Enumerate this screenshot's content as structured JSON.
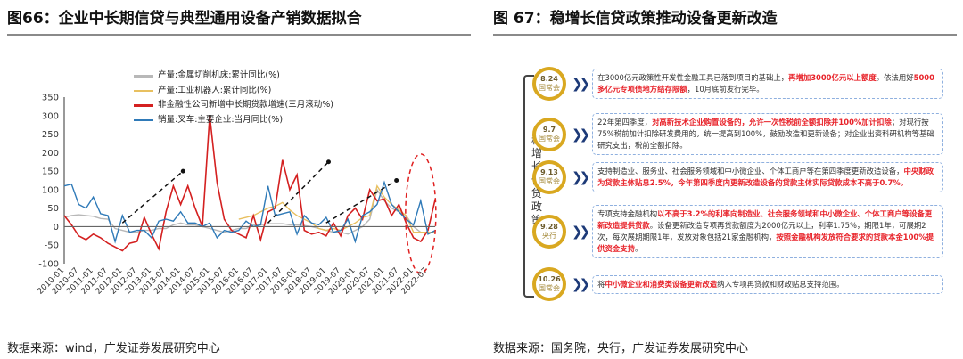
{
  "left": {
    "title": "图66：企业中长期信贷与典型通用设备产销数据拟合",
    "source": "数据来源：wind，广发证券发展研究中心"
  },
  "right": {
    "title": "图 67：稳增长信贷政策推动设备更新改造",
    "source": "数据来源：国务院，央行，广发证券发展研究中心",
    "side_label": "稳增长信贷政策",
    "items": [
      {
        "date": "8.24",
        "org": "国常会",
        "segments": [
          {
            "t": "在3000亿元政策性开发性金融工具已落到项目的基础上，",
            "red": false
          },
          {
            "t": "再增加3000亿元以上额度",
            "red": true
          },
          {
            "t": "。依法用好",
            "red": false
          },
          {
            "t": "5000多亿元专项债地方结存限额",
            "red": true
          },
          {
            "t": "，10月底前发行完毕。",
            "red": false
          }
        ]
      },
      {
        "date": "9.7",
        "org": "国常会",
        "segments": [
          {
            "t": "22年第四季度，",
            "red": false
          },
          {
            "t": "对高新技术企业购置设备的，允许一次性税前全额扣除并100%加计扣除",
            "red": true
          },
          {
            "t": "；对现行按75%税前加计扣除研发费用的，统一提高到100%，鼓励改造和更新设备；对企业出资科研机构等基础研究支出，税前全额扣除。",
            "red": false
          }
        ]
      },
      {
        "date": "9.13",
        "org": "国常会",
        "segments": [
          {
            "t": "支持制造业、服务业、社会服务领域和中小微企业、个体工商户等在第四季度更新改造设备，",
            "red": false
          },
          {
            "t": "中央财政为贷款主体贴息2.5%，今年第四季度内更新改造设备的贷款主体实际贷款成本不高于0.7%。",
            "red": true
          }
        ]
      },
      {
        "date": "9.28",
        "org": "央行",
        "segments": [
          {
            "t": "专项支持金融机构",
            "red": false
          },
          {
            "t": "以不高于3.2%的利率向制造业、社会服务领域和中小微企业、个体工商户等设备更新改造提供贷款",
            "red": true
          },
          {
            "t": "。设备更新改造专项再贷款额度为2000亿元以上，利率1.75%，期限1年，可展期2次，每次展期期限1年，发放对象包括21家金融机构，",
            "red": false
          },
          {
            "t": "按照金融机构发放符合要求的贷款本金100%提供资金支持",
            "red": true
          },
          {
            "t": "。",
            "red": false
          }
        ]
      },
      {
        "date": "10.26",
        "org": "国常会",
        "segments": [
          {
            "t": "将",
            "red": false
          },
          {
            "t": "中小微企业和消费类设备更新改造",
            "red": true
          },
          {
            "t": "纳入专项再贷款和财政贴息支持范围。",
            "red": false
          }
        ]
      }
    ]
  },
  "chart_data": {
    "type": "line",
    "title": "企业中长期信贷与典型通用设备产销数据拟合",
    "ylim": [
      -100,
      350
    ],
    "yticks": [
      350,
      300,
      250,
      200,
      150,
      100,
      50,
      0,
      -50,
      -100
    ],
    "x_start": "2010-01",
    "x_step_months": 3,
    "xticks": [
      "2010-01",
      "2010-07",
      "2011-01",
      "2011-07",
      "2012-01",
      "2012-07",
      "2013-01",
      "2013-07",
      "2014-01",
      "2014-07",
      "2015-01",
      "2015-07",
      "2016-01",
      "2016-07",
      "2017-01",
      "2017-07",
      "2018-01",
      "2018-07",
      "2019-01",
      "2019-07",
      "2020-01",
      "2020-07",
      "2021-01",
      "2021-07",
      "2022-01",
      "2022-07"
    ],
    "series": [
      {
        "name": "产量:金属切削机床:累计同比(%)",
        "color": "#b8b8b8",
        "values": [
          25,
          30,
          32,
          30,
          28,
          22,
          20,
          -5,
          -10,
          -15,
          -15,
          -10,
          -10,
          -5,
          -5,
          5,
          10,
          5,
          5,
          0,
          -5,
          -10,
          -15,
          -10,
          -5,
          -5,
          5,
          5,
          8,
          8,
          8,
          5,
          5,
          3,
          0,
          -5,
          -10,
          -15,
          -15,
          -20,
          -10,
          0,
          20,
          100,
          70,
          50,
          40,
          30,
          0,
          -15,
          -15,
          -15
        ]
      },
      {
        "name": "产量:工业机器人:累计同比(%)",
        "color": "#e8c060",
        "values": [
          null,
          null,
          null,
          null,
          null,
          null,
          null,
          null,
          null,
          null,
          null,
          null,
          null,
          null,
          null,
          null,
          null,
          null,
          null,
          null,
          null,
          null,
          null,
          null,
          20,
          25,
          30,
          40,
          50,
          55,
          65,
          45,
          30,
          20,
          10,
          -5,
          -10,
          -5,
          -10,
          0,
          10,
          25,
          30,
          110,
          80,
          60,
          45,
          30,
          -15,
          -15,
          -15,
          -15
        ]
      },
      {
        "name": "非金融性公司新增中长期贷款增速(三月滚动%)",
        "color": "#d42020",
        "values": [
          30,
          5,
          -25,
          -35,
          -20,
          -30,
          -45,
          -55,
          -65,
          -45,
          -40,
          25,
          -20,
          -60,
          40,
          110,
          60,
          110,
          50,
          0,
          300,
          120,
          20,
          -10,
          -20,
          -30,
          30,
          -35,
          40,
          50,
          180,
          100,
          140,
          -10,
          -20,
          -15,
          -25,
          10,
          -25,
          30,
          50,
          20,
          100,
          70,
          75,
          30,
          60,
          10,
          -30,
          -40,
          -10,
          75
        ]
      },
      {
        "name": "销量:叉车:主要企业:当月同比(%)",
        "color": "#2f7ab8",
        "values": [
          110,
          115,
          60,
          50,
          80,
          35,
          30,
          -40,
          30,
          -15,
          -10,
          -10,
          -30,
          15,
          20,
          15,
          40,
          10,
          10,
          0,
          10,
          -30,
          -10,
          -15,
          -10,
          15,
          0,
          5,
          110,
          30,
          35,
          40,
          -20,
          30,
          10,
          5,
          25,
          -15,
          -10,
          20,
          -40,
          30,
          40,
          60,
          120,
          60,
          40,
          20,
          5,
          70,
          -20,
          -10
        ]
      }
    ]
  }
}
